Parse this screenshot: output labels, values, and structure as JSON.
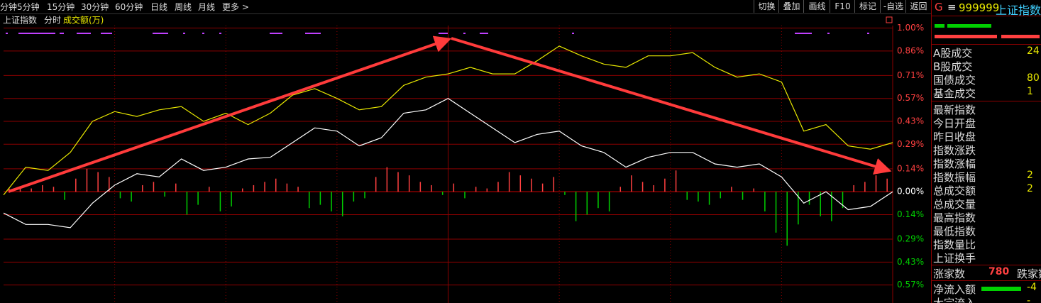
{
  "toolbar": {
    "periods": [
      "分钟",
      "5分钟",
      "15分钟",
      "30分钟",
      "60分钟",
      "日线",
      "周线",
      "月线",
      "更多 >"
    ],
    "buttons": [
      "切换",
      "叠加",
      "画线",
      "F10",
      "标记",
      "-自选",
      "返回"
    ]
  },
  "chart_data": {
    "type": "line",
    "title": "上证指数",
    "mode": "分时",
    "volume_label": "成交额(万)",
    "x": [
      0,
      1,
      2,
      3,
      4,
      5,
      6,
      7,
      8,
      9,
      10,
      11,
      12,
      13,
      14,
      15,
      16,
      17,
      18,
      19,
      20,
      21,
      22,
      23,
      24,
      25,
      26,
      27,
      28,
      29,
      30,
      31,
      32,
      33,
      34,
      35,
      36,
      37,
      38,
      39,
      40
    ],
    "xlim": [
      0,
      40
    ],
    "ylim": [
      -0.68,
      1.05
    ],
    "yticks": [
      {
        "value": 1.0,
        "label": "1.00%"
      },
      {
        "value": 0.86,
        "label": "0.86%"
      },
      {
        "value": 0.71,
        "label": "0.71%"
      },
      {
        "value": 0.57,
        "label": "0.57%"
      },
      {
        "value": 0.43,
        "label": "0.43%"
      },
      {
        "value": 0.29,
        "label": "0.29%"
      },
      {
        "value": 0.14,
        "label": "0.14%"
      },
      {
        "value": 0,
        "label": "0.00%"
      },
      {
        "value": -0.14,
        "label": "0.14%"
      },
      {
        "value": -0.29,
        "label": "0.29%"
      },
      {
        "value": -0.43,
        "label": "0.43%"
      },
      {
        "value": -0.57,
        "label": "0.57%"
      }
    ],
    "grid": true,
    "up_color": "#ff4040",
    "down_color": "#00d000",
    "zero_color": "#ffffff",
    "series": [
      {
        "color": "#ffffff",
        "values": [
          -0.13,
          -0.2,
          -0.2,
          -0.22,
          -0.07,
          0.04,
          0.11,
          0.09,
          0.2,
          0.13,
          0.15,
          0.2,
          0.21,
          0.3,
          0.39,
          0.37,
          0.28,
          0.33,
          0.48,
          0.5,
          0.57,
          0.48,
          0.39,
          0.3,
          0.35,
          0.37,
          0.28,
          0.24,
          0.15,
          0.21,
          0.24,
          0.24,
          0.17,
          0.15,
          0.17,
          0.09,
          -0.07,
          0,
          -0.11,
          -0.09,
          0
        ]
      },
      {
        "color": "#e8e800",
        "values": [
          -0.02,
          0.15,
          0.13,
          0.24,
          0.43,
          0.49,
          0.46,
          0.5,
          0.52,
          0.43,
          0.48,
          0.41,
          0.48,
          0.59,
          0.63,
          0.57,
          0.5,
          0.52,
          0.65,
          0.7,
          0.72,
          0.76,
          0.72,
          0.72,
          0.8,
          0.89,
          0.83,
          0.78,
          0.76,
          0.83,
          0.83,
          0.85,
          0.76,
          0.7,
          0.72,
          0.67,
          0.37,
          0.41,
          0.28,
          0.26,
          0.3
        ]
      }
    ],
    "volume": {
      "values": [
        0.02,
        0.03,
        0.02,
        0.04,
        0.03,
        -0.05,
        0.08,
        0.14,
        0.12,
        0.09,
        -0.04,
        -0.06,
        0.04,
        0.06,
        -0.03,
        0.05,
        -0.14,
        -0.08,
        0.03,
        -0.12,
        -0.09,
        0.02,
        0.04,
        0.06,
        0.08,
        0.05,
        0.03,
        -0.1,
        -0.08,
        -0.12,
        -0.15,
        -0.06,
        -0.04,
        0.09,
        0.15,
        0.12,
        0.1,
        0.06,
        0.04,
        -0.02,
        0.05,
        -0.04,
        0.03,
        0.02,
        0.06,
        0.12,
        0.1,
        0.08,
        0.05,
        0.09,
        -0.02,
        -0.18,
        -0.14,
        -0.1,
        -0.12,
        0.03,
        0.1,
        0.06,
        0.04,
        0.08,
        0.13,
        -0.05,
        -0.06,
        -0.08,
        -0.04,
        0.03,
        -0.05,
        0.02,
        -0.12,
        -0.25,
        -0.33,
        -0.2,
        -0.08,
        -0.15,
        -0.18,
        -0.1,
        0.04,
        0.06,
        0.1,
        0.08
      ]
    }
  },
  "panel": {
    "prefix": "G",
    "menu": "≡",
    "code": "999999",
    "name": "上证指数",
    "trade": [
      {
        "label": "A股成交",
        "value": "24"
      },
      {
        "label": "B股成交",
        "value": ""
      },
      {
        "label": "国债成交",
        "value": "80"
      },
      {
        "label": "基金成交",
        "value": "1"
      }
    ],
    "index": [
      {
        "label": "最新指数"
      },
      {
        "label": "今日开盘"
      },
      {
        "label": "昨日收盘"
      },
      {
        "label": "指数涨跌"
      },
      {
        "label": "指数涨幅"
      },
      {
        "label": "指数振幅",
        "value": "2"
      },
      {
        "label": "总成交额",
        "value": "2"
      },
      {
        "label": "总成交量"
      },
      {
        "label": "最高指数"
      },
      {
        "label": "最低指数"
      },
      {
        "label": "指数量比"
      },
      {
        "label": "上证换手"
      }
    ],
    "breadth": {
      "up_label": "涨家数",
      "up_value": "780",
      "down_label": "跌家数"
    },
    "flow": [
      {
        "label": "净流入额",
        "value": "-4"
      },
      {
        "label": "大宗流入",
        "value": "-"
      }
    ]
  }
}
